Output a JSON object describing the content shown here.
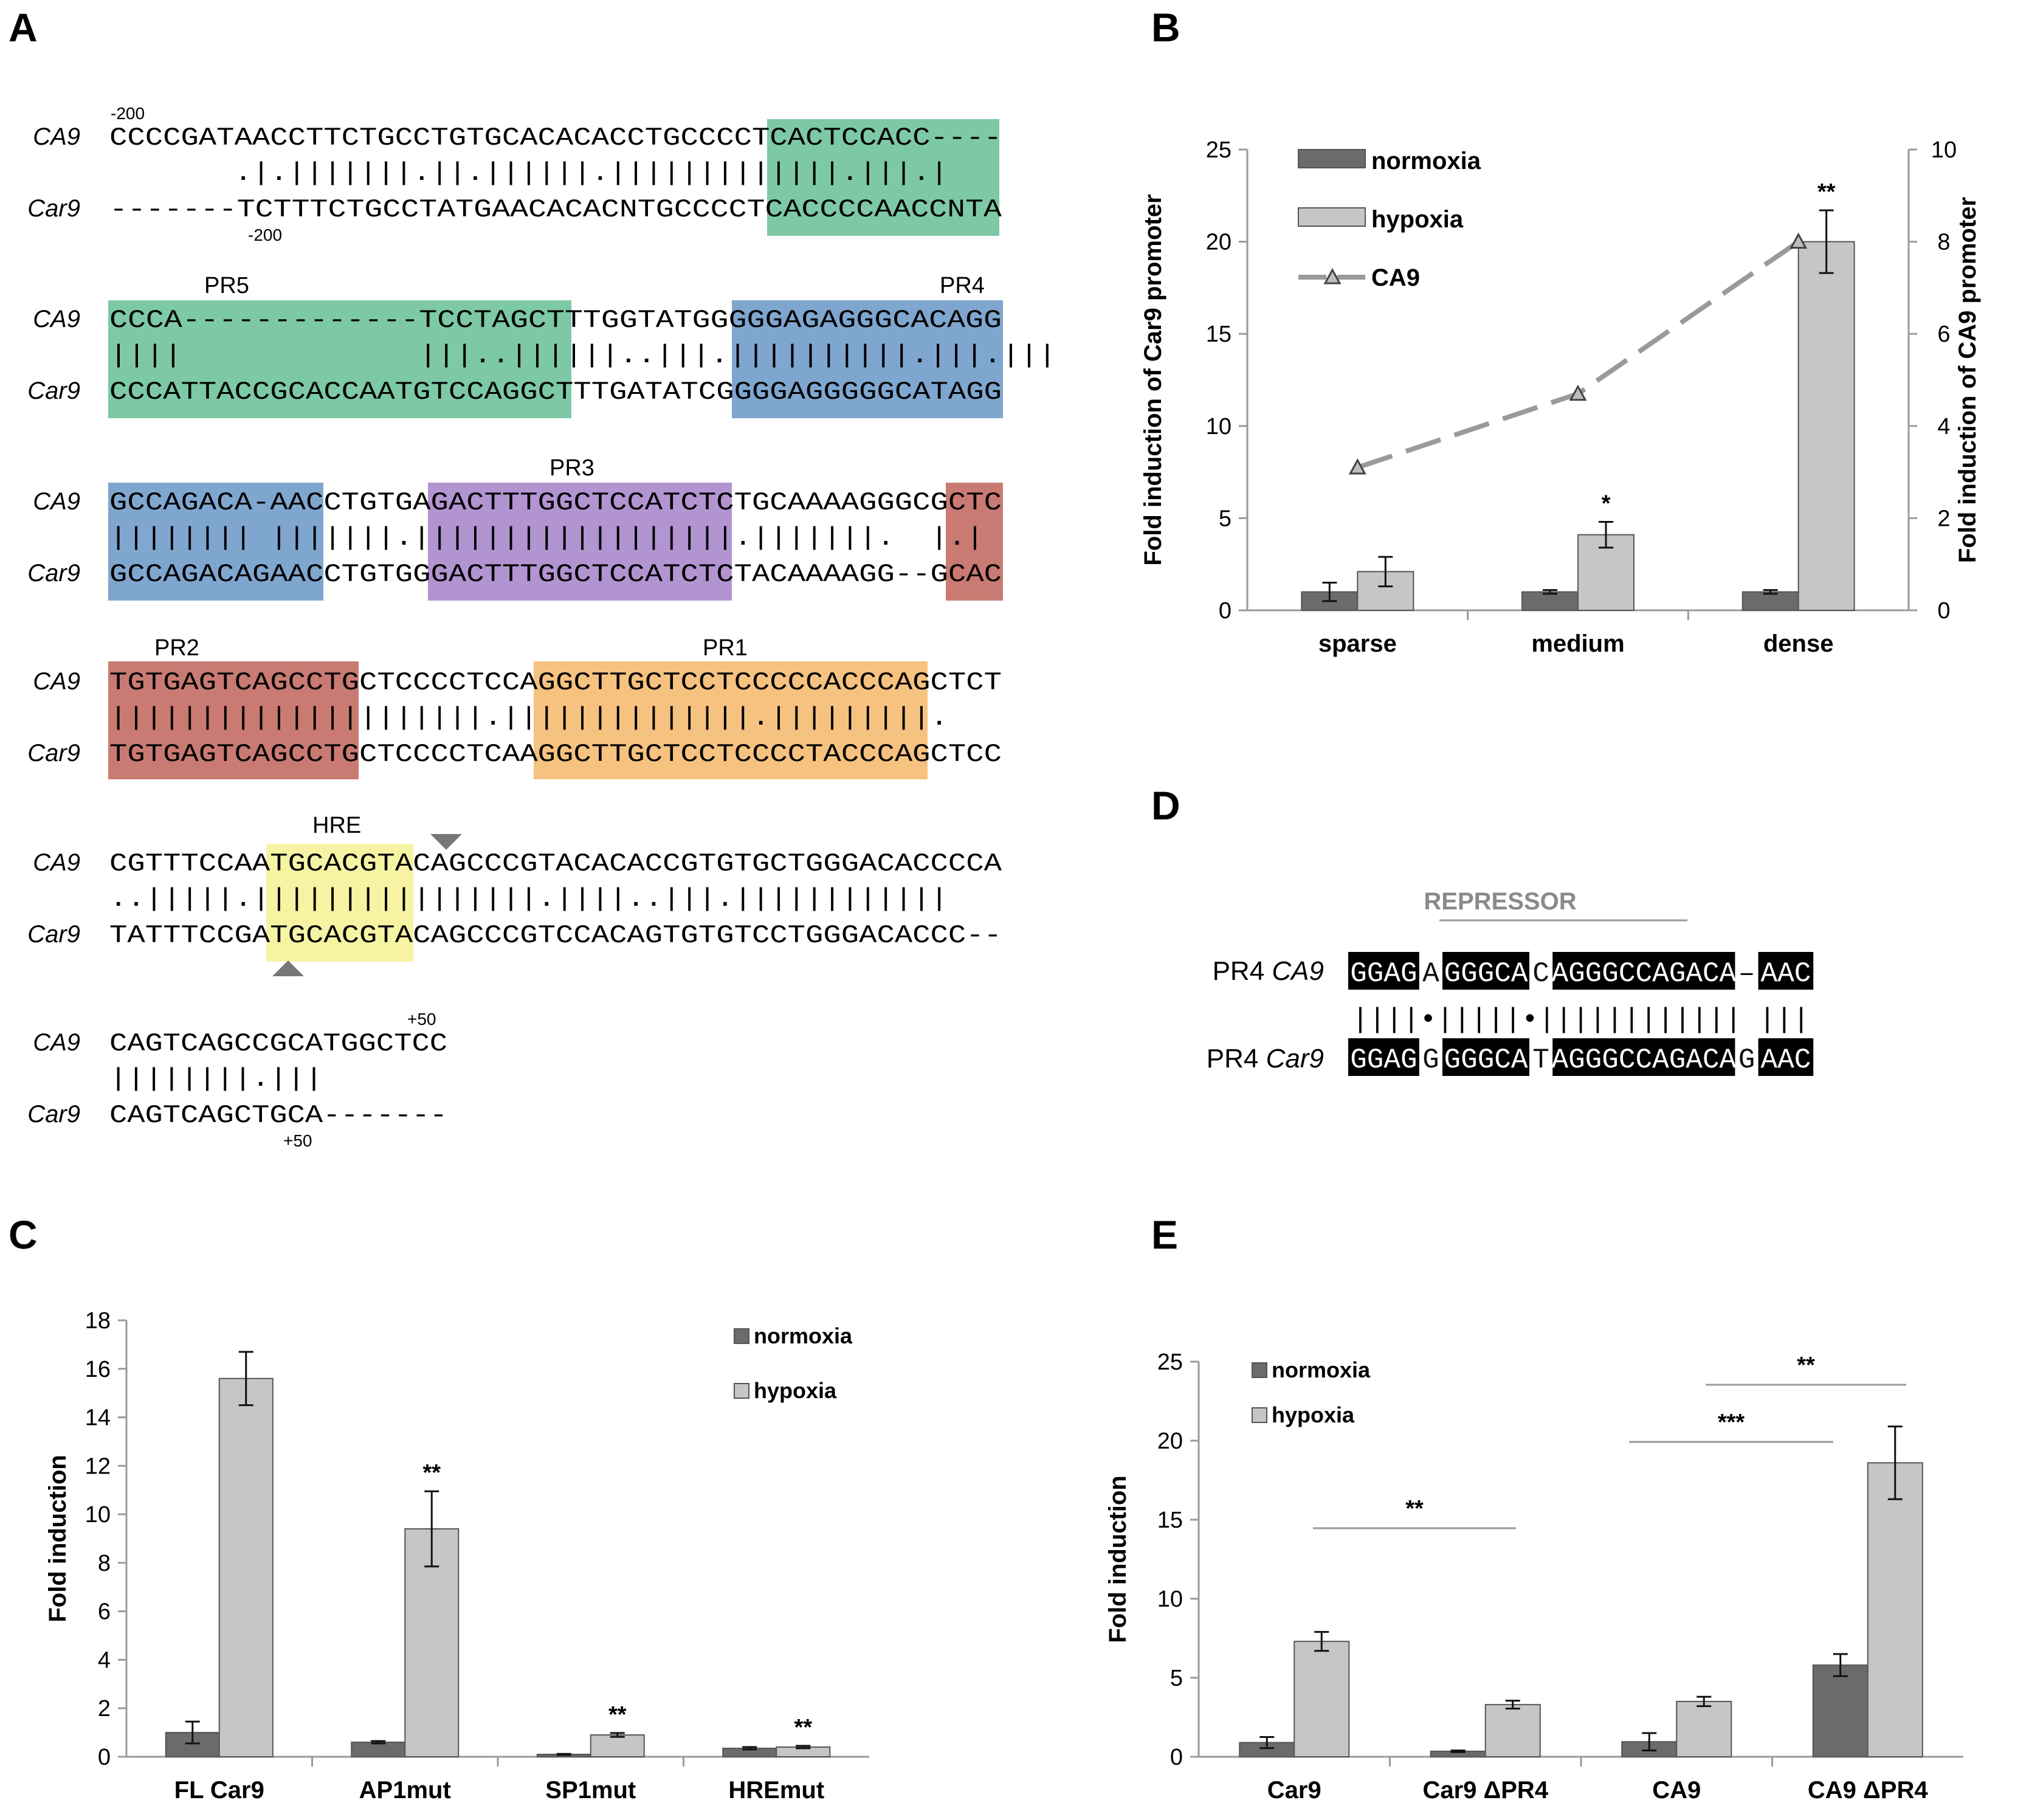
{
  "panels": {
    "A": "A",
    "B": "B",
    "C": "C",
    "D": "D",
    "E": "E"
  },
  "colors": {
    "green": "#7dc9a5",
    "blue": "#7fa6cf",
    "purple": "#b294d1",
    "red": "#c97a72",
    "orange": "#f6c27f",
    "yellow": "#f6f3a3",
    "dark": "#6b6b6b",
    "light": "#c6c6c6",
    "dash": "#9a9a9a"
  },
  "alignment": {
    "rows": [
      {
        "top": "CCCCGATAACCTTCTGCCTGTGCACACACCTGCCCCTCACTCCACC----",
        "mid": "       .|.|||||||.||.||||||.|||||||||||||.|||.|     ",
        "bot": "-------TCTTTCTGCCTATGAACACACNTGCCCCTCACCCCAACCNTA",
        "top_label": "-200",
        "bot_label": "-200"
      },
      {
        "top": "CCCA-------------TCCTAGCTTTGGTATGGGGGAGAGGGCACAGG",
        "mid": "||||             |||..||||||..|||.||||||||||.|||.|||",
        "bot": "CCCATTACCGCACCAATGTCCAGGCTTTGATATCGGGGAGGGGGCATAGG"
      },
      {
        "top": "GCCAGACA-AACCTGTGAGACTTTGGCTCCATCTCTGCAAAAGGGCGCTC",
        "mid": "|||||||| |||||||.||||||||||||||||||.|||||||.  |.|",
        "bot": "GCCAGACAGAACCTGTGGGACTTTGGCTCCATCTCTACAAAAGG--GCAC"
      },
      {
        "top": "TGTGAGTCAGCCTGCTCCCCTCCAGGCTTGCTCCTCCCCCACCCAGCTCT",
        "mid": "|||||||||||||||||||||.||||||||||||||.|||||||||.",
        "bot": "TGTGAGTCAGCCTGCTCCCCTCAAGGCTTGCTCCTCCCCTACCCAGCTCC"
      },
      {
        "top": "CGTTTCCAATGCACGTACAGCCCGTACACACCGTGTGCTGGGACACCCCA",
        "mid": "..|||||.||||||||||||||||.||||..|||.||||||||||||",
        "bot": "TATTTCCGATGCACGTACAGCCCGTCCACAGTGTGTCCTGGGACACCC--"
      },
      {
        "top": "CAGTCAGCCGCATGGCTCC",
        "mid": "||||||||.|||",
        "bot": "CAGTCAGCTGCA-------",
        "top_label": "+50",
        "bot_label": "+50"
      }
    ],
    "gene_top": "CA9",
    "gene_bot": "Car9",
    "region_labels": {
      "pr5": "PR5",
      "pr4": "PR4",
      "pr3": "PR3",
      "pr2": "PR2",
      "pr1": "PR1",
      "hre": "HRE"
    }
  },
  "panel_d": {
    "header": "REPRESSOR",
    "top_label": "PR4 ",
    "top_gene": "CA9",
    "bot_label": "PR4 ",
    "bot_gene": "Car9",
    "top_blocks": [
      "GGAG",
      "A",
      "GGGCA",
      "C",
      "AGGGCCAGACA",
      "–",
      "AAC"
    ],
    "bot_blocks": [
      "GGAG",
      "G",
      "GGGCA",
      "T",
      "AGGGCCAGACA",
      "G",
      "AAC"
    ],
    "matches": "||||•|||||•|||||||||||| |||"
  },
  "chart_data": [
    {
      "id": "B",
      "type": "bar",
      "title": "",
      "categories": [
        "sparse",
        "medium",
        "dense"
      ],
      "series": [
        {
          "name": "normoxia",
          "values": [
            1.0,
            1.0,
            1.0
          ],
          "errors": [
            0.5,
            0.1,
            0.1
          ]
        },
        {
          "name": "hypoxia",
          "values": [
            2.1,
            4.1,
            20.0
          ],
          "errors": [
            0.8,
            0.7,
            1.7
          ]
        },
        {
          "name": "CA9",
          "type": "line",
          "axis": "right",
          "values": [
            3.1,
            4.7,
            8.0
          ]
        }
      ],
      "ylabel": "Fold induction of Car9 promoter",
      "y2label": "Fold induction of CA9 promoter",
      "ylim": [
        0,
        25
      ],
      "y2lim": [
        0,
        10
      ],
      "yticks": [
        "0",
        "5",
        "10",
        "15",
        "20",
        "25"
      ],
      "y2ticks": [
        "0",
        "2",
        "4",
        "6",
        "8",
        "10"
      ],
      "significance": [
        "",
        "*",
        "**"
      ],
      "legend": "top-left"
    },
    {
      "id": "C",
      "type": "bar",
      "categories": [
        "FL Car9",
        "AP1mut",
        "SP1mut",
        "HREmut"
      ],
      "series": [
        {
          "name": "normoxia",
          "values": [
            1.0,
            0.6,
            0.1,
            0.35
          ],
          "errors": [
            0.45,
            0.05,
            0.02,
            0.05
          ]
        },
        {
          "name": "hypoxia",
          "values": [
            15.6,
            9.4,
            0.9,
            0.4
          ],
          "errors": [
            1.1,
            1.55,
            0.08,
            0.05
          ]
        }
      ],
      "ylabel": "Fold induction",
      "ylim": [
        0,
        18
      ],
      "yticks": [
        "0",
        "2",
        "4",
        "6",
        "8",
        "10",
        "12",
        "14",
        "16",
        "18"
      ],
      "significance": [
        "",
        "**",
        "**",
        "**"
      ],
      "legend": "top-right"
    },
    {
      "id": "E",
      "type": "bar",
      "categories": [
        "Car9",
        "Car9 ΔPR4",
        "CA9",
        "CA9 ΔPR4"
      ],
      "series": [
        {
          "name": "normoxia",
          "values": [
            0.9,
            0.35,
            0.95,
            5.8
          ],
          "errors": [
            0.35,
            0.05,
            0.55,
            0.7
          ]
        },
        {
          "name": "hypoxia",
          "values": [
            7.3,
            3.3,
            3.5,
            18.6
          ],
          "errors": [
            0.6,
            0.25,
            0.3,
            2.3
          ]
        }
      ],
      "ylabel": "Fold induction",
      "ylim": [
        0,
        25
      ],
      "yticks": [
        "0",
        "5",
        "10",
        "15",
        "20",
        "25"
      ],
      "comparisons": [
        {
          "label": "**"
        },
        {
          "label": "***"
        },
        {
          "label": "**"
        }
      ],
      "legend": "top-left"
    }
  ]
}
